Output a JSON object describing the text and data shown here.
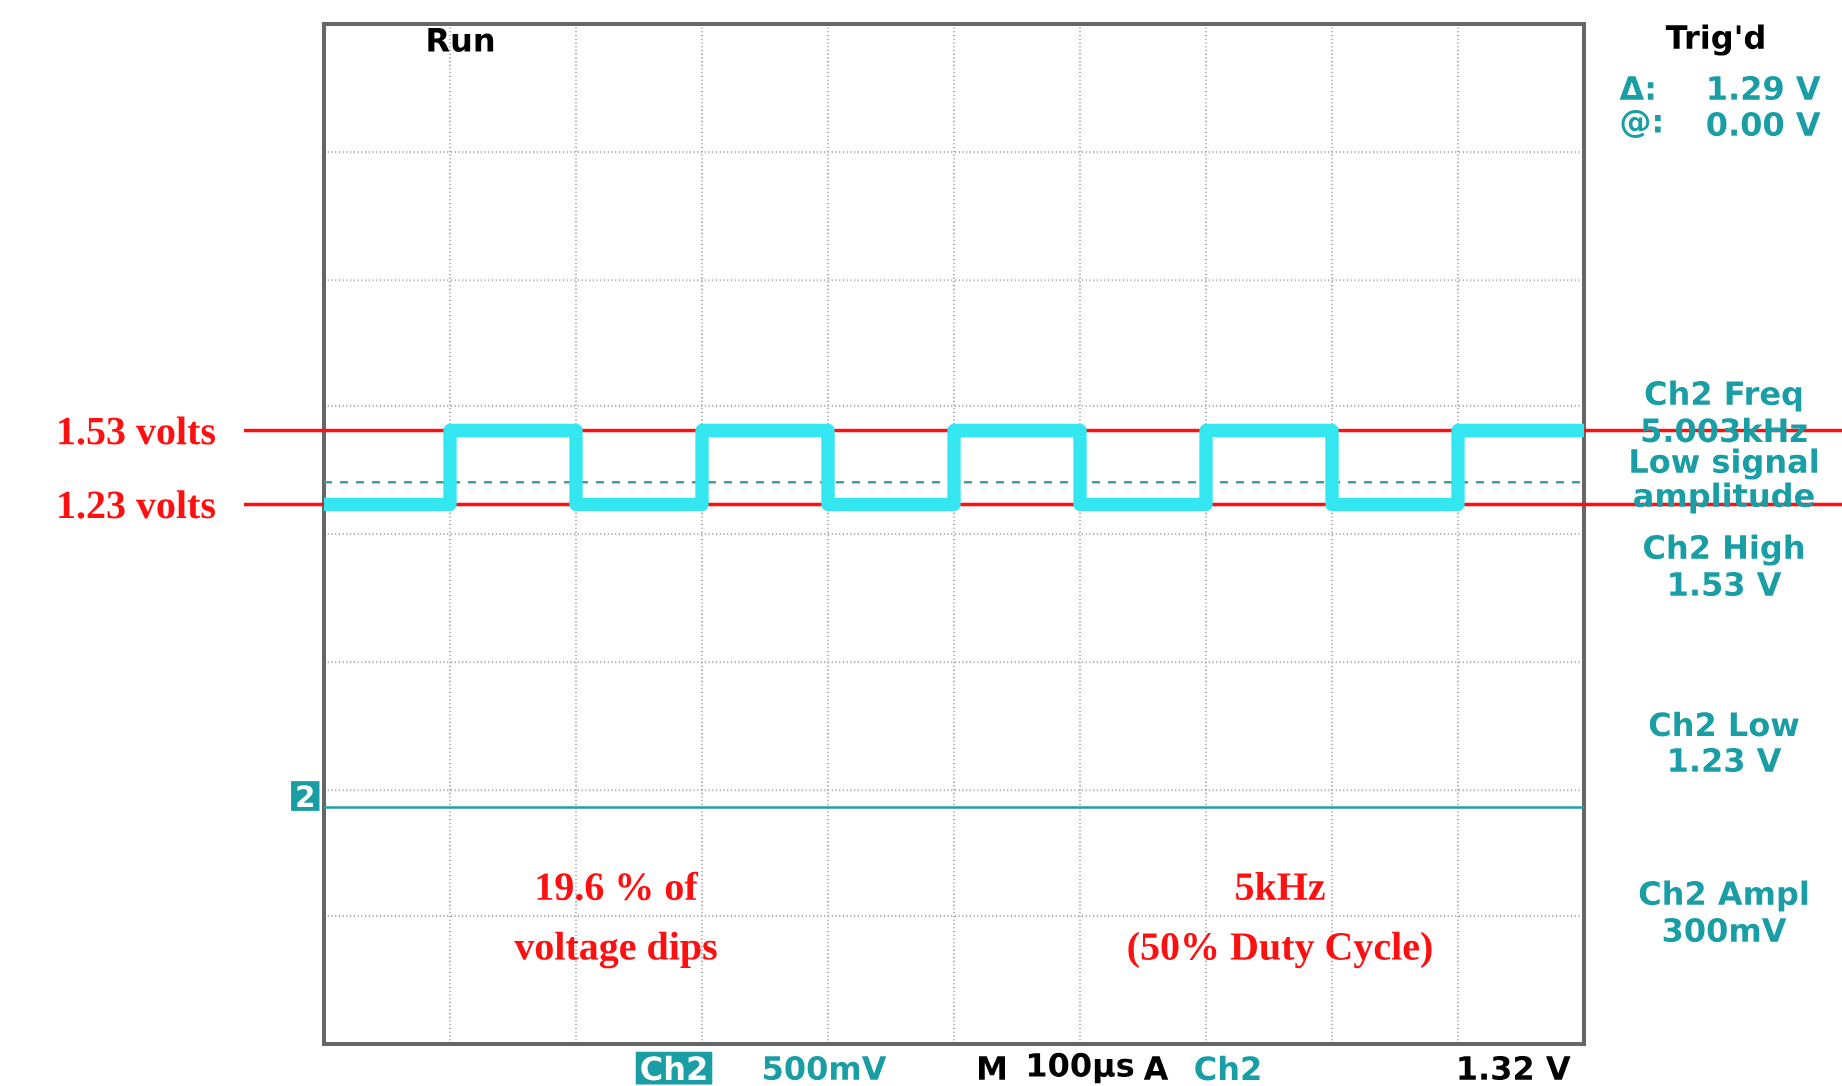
{
  "chart_data": {
    "type": "step",
    "categories": [
      null,
      null,
      null,
      null,
      null,
      null,
      null,
      null,
      null,
      null,
      null
    ],
    "series": [
      {
        "color": "#33e6f0",
        "values": [
          1.23,
          1.53,
          1.23,
          1.53,
          1.23,
          1.53,
          1.23,
          1.53,
          1.23,
          1.53,
          1.53
        ]
      }
    ],
    "ylim": [
      -0.96,
      3.18
    ],
    "yticks": [
      {
        "value": -0.96,
        "label": null
      },
      {
        "value": -0.44,
        "label": null
      },
      {
        "value": 0.07,
        "label": null
      },
      {
        "value": 0.59,
        "label": null
      },
      {
        "value": 1.11,
        "label": null
      },
      {
        "value": 1.63,
        "label": null
      },
      {
        "value": 2.14,
        "label": null
      },
      {
        "value": 2.66,
        "label": null
      },
      {
        "value": 3.18,
        "label": null
      }
    ],
    "grid": true,
    "marker": "none",
    "ref_lines": [
      {
        "axis": "y",
        "value": 1.53,
        "label": "1.53 volts",
        "color": "#ff1010"
      },
      {
        "axis": "y",
        "value": 1.23,
        "label": "1.23 volts",
        "color": "#ff1010"
      },
      {
        "axis": "y",
        "value": 1.32,
        "color": "#4a9aa0",
        "line_style": "dashed"
      },
      {
        "axis": "y",
        "value": 0,
        "color": "#1f9fa6"
      }
    ],
    "annotations": [
      "Run",
      "Trig'd",
      "Δ:",
      "1.29 V",
      "@:",
      "0.00 V",
      "Ch2 Freq",
      "5.003kHz",
      "Low signal",
      "amplitude",
      "Ch2 High",
      "1.53 V",
      "Ch2 Low",
      "1.23 V",
      "Ch2 Ampl",
      "300mV",
      "Ch2",
      "500mV",
      "M",
      "100µs",
      "A",
      "Ch2",
      "1.32 V",
      "19.6 % of",
      "voltage dips",
      "5kHz",
      "(50% Duty Cycle)",
      "2"
    ]
  }
}
